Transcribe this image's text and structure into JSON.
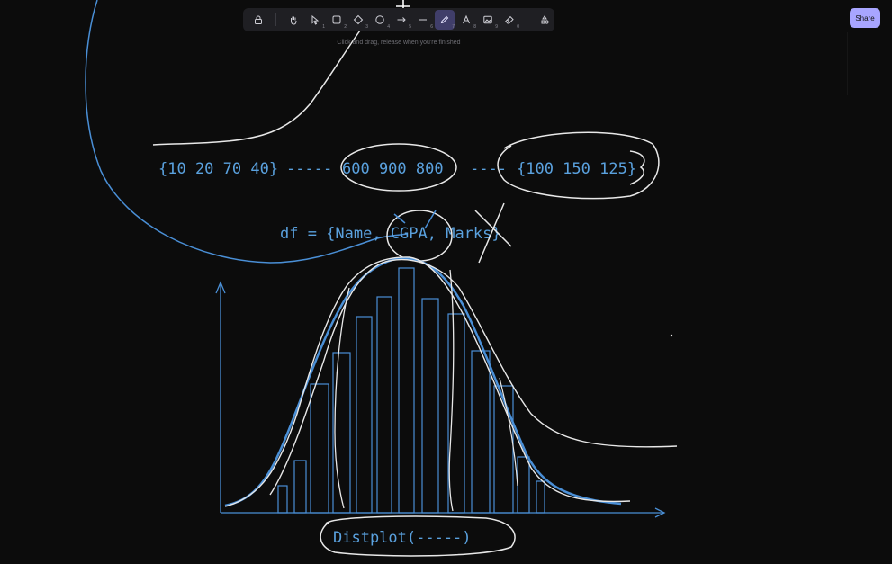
{
  "toolbar": {
    "tools": [
      {
        "name": "lock-tool",
        "icon": "lock-icon",
        "key": ""
      },
      {
        "name": "hand-tool",
        "icon": "hand-icon",
        "key": ""
      },
      {
        "name": "selection-tool",
        "icon": "pointer-icon",
        "key": "1"
      },
      {
        "name": "rectangle-tool",
        "icon": "rectangle-icon",
        "key": "2"
      },
      {
        "name": "diamond-tool",
        "icon": "diamond-icon",
        "key": "3"
      },
      {
        "name": "ellipse-tool",
        "icon": "ellipse-icon",
        "key": "4"
      },
      {
        "name": "arrow-tool",
        "icon": "arrow-icon",
        "key": "5"
      },
      {
        "name": "line-tool",
        "icon": "line-icon",
        "key": "6"
      },
      {
        "name": "draw-tool",
        "icon": "pencil-icon",
        "key": "7",
        "active": true
      },
      {
        "name": "text-tool",
        "icon": "text-icon",
        "key": "8"
      },
      {
        "name": "image-tool",
        "icon": "image-icon",
        "key": "9"
      },
      {
        "name": "eraser-tool",
        "icon": "eraser-icon",
        "key": "0"
      },
      {
        "name": "extra-tools",
        "icon": "shapes-icon",
        "key": ""
      }
    ],
    "hint": "Click and drag, release when you're finished"
  },
  "share_label": "Share",
  "canvas": {
    "stroke_colors": {
      "white": "#e8e8e8",
      "blue": "#4a8fd6"
    },
    "row1": {
      "g1": "{10 20 70 40}",
      "dash1": "-----",
      "g2": "600 900 800",
      "dash2": "----",
      "g3": "{100 150 125}"
    },
    "df_label": "df = {Name, CGPA, Marks}",
    "distplot_label": "Distplot(-----)"
  }
}
